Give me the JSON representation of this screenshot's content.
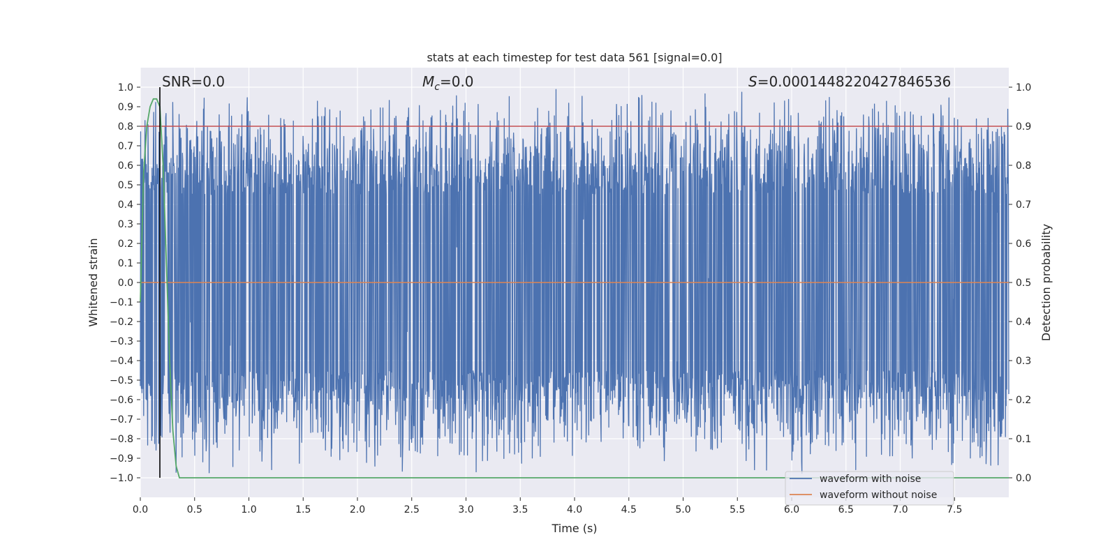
{
  "chart_data": {
    "type": "line",
    "title": "stats at each timestep for test data 561 [signal=0.0]",
    "xlabel": "Time (s)",
    "ylabel": "Whitened strain",
    "ylabel_right": "Detection probability",
    "xlim": [
      0.0,
      8.0
    ],
    "ylim": [
      -1.1,
      1.1
    ],
    "ylim_right": [
      -0.05,
      1.05
    ],
    "x_ticks": [
      "0.0",
      "0.5",
      "1.0",
      "1.5",
      "2.0",
      "2.5",
      "3.0",
      "3.5",
      "4.0",
      "4.5",
      "5.0",
      "5.5",
      "6.0",
      "6.5",
      "7.0",
      "7.5"
    ],
    "y_ticks": [
      "1.0",
      "0.9",
      "0.8",
      "0.7",
      "0.6",
      "0.5",
      "0.4",
      "0.3",
      "0.2",
      "0.1",
      "0.0",
      "−0.1",
      "−0.2",
      "−0.3",
      "−0.4",
      "−0.5",
      "−0.6",
      "−0.7",
      "−0.8",
      "−0.9",
      "−1.0"
    ],
    "y_ticks_right": [
      "1.0",
      "0.9",
      "0.8",
      "0.7",
      "0.6",
      "0.5",
      "0.4",
      "0.3",
      "0.2",
      "0.1",
      "0.0"
    ],
    "grid": true,
    "legend_position": "lower-right",
    "annotations": {
      "snr": "SNR=0.0",
      "mc_symbol": "M",
      "mc_sub": "c",
      "mc_value": "=0.0",
      "s_symbol": "S",
      "s_value": "=0.0001448220427846536"
    },
    "series": [
      {
        "name": "waveform with noise",
        "color": "#4c72b0",
        "kind": "noise",
        "range": [
          -1.0,
          1.0
        ]
      },
      {
        "name": "waveform without noise",
        "color": "#dd8452",
        "kind": "flat",
        "value": 0.0
      }
    ],
    "threshold": {
      "axis": "right",
      "value": 0.9,
      "color": "#c44e52"
    },
    "detection_prob": {
      "color": "#55a868",
      "x": [
        0.0,
        0.03,
        0.06,
        0.09,
        0.12,
        0.15,
        0.18,
        0.21,
        0.24,
        0.27,
        0.3,
        0.33,
        0.36,
        0.4,
        8.0
      ],
      "y": [
        0.45,
        0.78,
        0.9,
        0.95,
        0.97,
        0.97,
        0.95,
        0.8,
        0.55,
        0.3,
        0.12,
        0.03,
        0.0,
        0.0,
        0.0
      ]
    },
    "marker_line": {
      "x": 0.18,
      "color": "#000000"
    }
  }
}
